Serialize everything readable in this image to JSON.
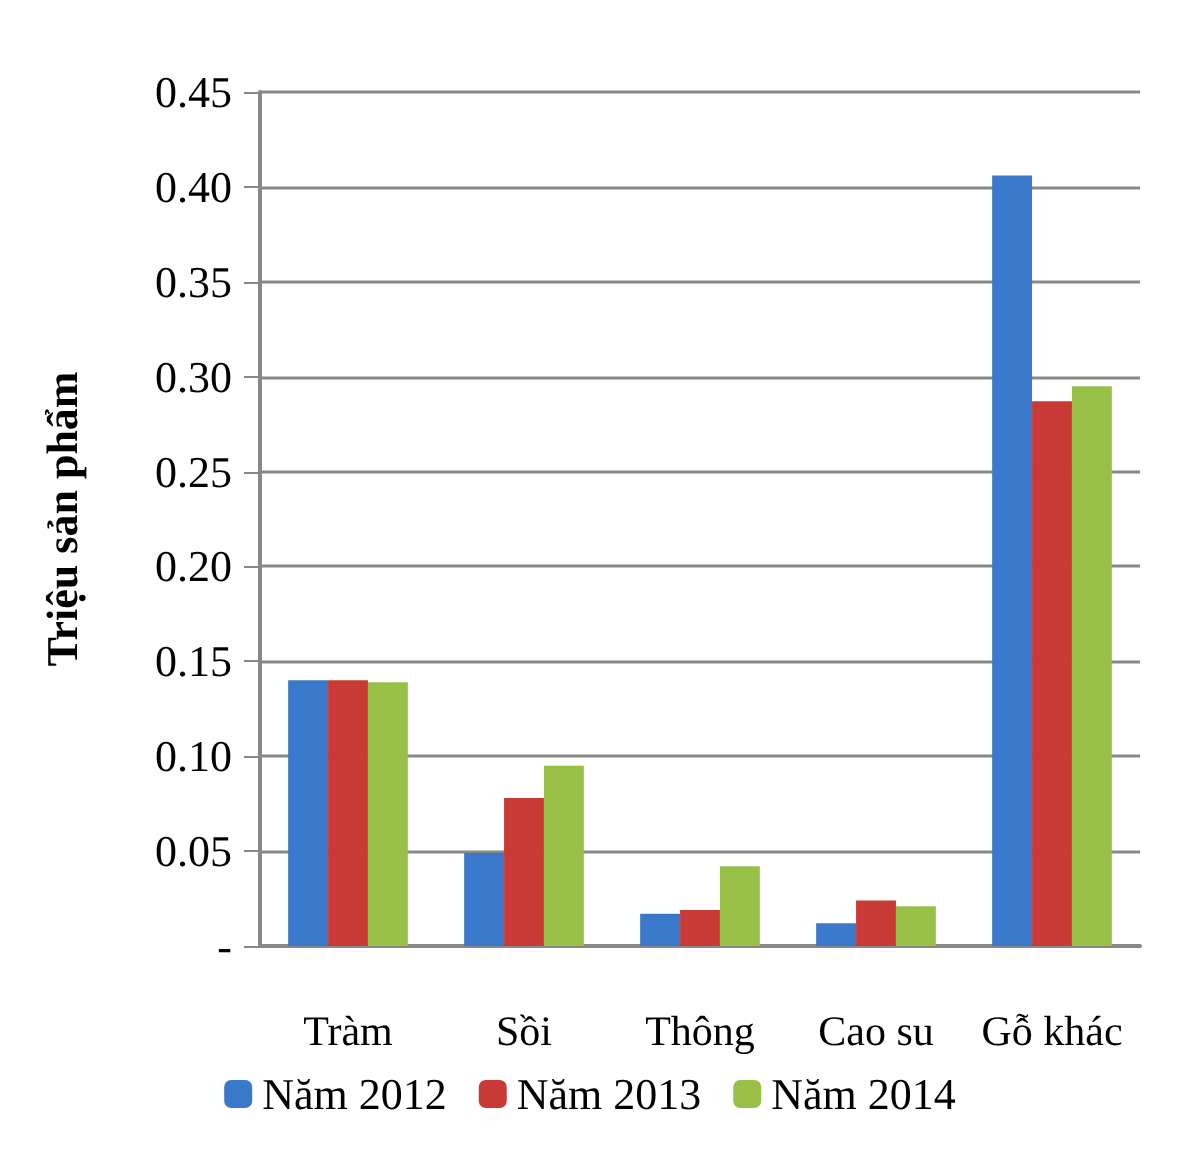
{
  "chart_data": {
    "type": "bar",
    "ylabel": "Triệu sản phẩm",
    "categories": [
      "Tràm",
      "Sồi",
      "Thông",
      "Cao su",
      "Gỗ khác"
    ],
    "series": [
      {
        "name": "Năm 2012",
        "color": "#3a78c9",
        "values": [
          0.14,
          0.049,
          0.017,
          0.012,
          0.406
        ]
      },
      {
        "name": "Năm 2013",
        "color": "#c93a36",
        "values": [
          0.14,
          0.078,
          0.019,
          0.024,
          0.287
        ]
      },
      {
        "name": "Năm 2014",
        "color": "#98c046",
        "values": [
          0.139,
          0.095,
          0.042,
          0.021,
          0.295
        ]
      }
    ],
    "ylim": [
      0,
      0.45
    ],
    "yticks": [
      {
        "value": 0,
        "label": "-"
      },
      0.05,
      {
        "value": 0.1,
        "label": "0.10"
      },
      0.15,
      {
        "value": 0.2,
        "label": "0.20"
      },
      0.25,
      {
        "value": 0.3,
        "label": "0.30"
      },
      0.35,
      {
        "value": 0.4,
        "label": "0.40"
      },
      0.45
    ],
    "grid": "y",
    "legend": "bottom"
  }
}
